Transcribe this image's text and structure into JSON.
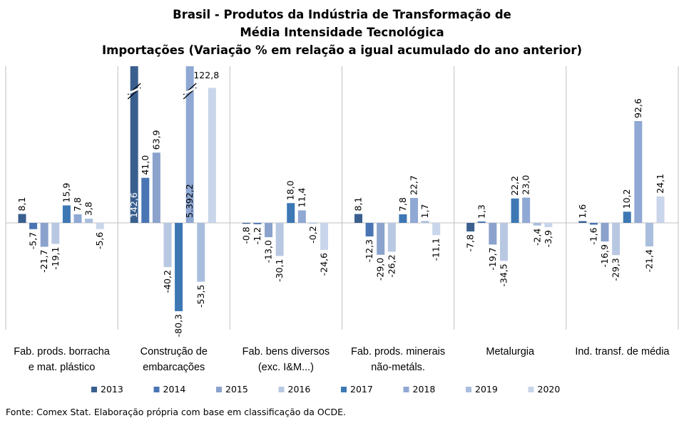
{
  "chart_data": {
    "type": "bar",
    "title_lines": [
      "Brasil - Produtos da Indústria de Transformação de",
      "Média Intensidade Tecnológica",
      "Importações (Variação % em relação a igual acumulado do ano anterior)"
    ],
    "categories": [
      [
        "Fab. prods. borracha",
        "e mat. plástico"
      ],
      [
        "Construção de",
        "embarcações"
      ],
      [
        "Fab. bens diversos",
        "(exc. I&M...)"
      ],
      [
        "Fab. prods. minerais",
        "não-metáls."
      ],
      [
        "Metalurgia"
      ],
      [
        "Ind. transf. de média"
      ]
    ],
    "series": [
      {
        "name": "2013",
        "color": "#3a5f8f",
        "values": [
          8.1,
          142.6,
          -0.8,
          8.1,
          -7.8,
          1.6
        ],
        "labels": [
          "8,1",
          "142,6",
          "-0,8",
          "8,1",
          "-7,8",
          "1,6"
        ]
      },
      {
        "name": "2014",
        "color": "#4a75b5",
        "values": [
          -5.7,
          41.0,
          -1.2,
          -12.3,
          1.3,
          -1.6
        ],
        "labels": [
          "-5,7",
          "41,0",
          "-1,2",
          "-12,3",
          "1,3",
          "-1,6"
        ]
      },
      {
        "name": "2015",
        "color": "#8ba2cc",
        "values": [
          -21.7,
          63.9,
          -13.0,
          -29.0,
          -19.7,
          -16.9
        ],
        "labels": [
          "-21,7",
          "63,9",
          "-13,0",
          "-29,0",
          "-19,7",
          "-16,9"
        ]
      },
      {
        "name": "2016",
        "color": "#b9c8e2",
        "values": [
          -19.1,
          -40.2,
          -30.1,
          -26.2,
          -34.5,
          -29.3
        ],
        "labels": [
          "-19,1",
          "-40,2",
          "-30,1",
          "-26,2",
          "-34,5",
          "-29,3"
        ]
      },
      {
        "name": "2017",
        "color": "#3d78b4",
        "values": [
          15.9,
          -80.3,
          18.0,
          7.8,
          22.2,
          10.2
        ],
        "labels": [
          "15,9",
          "-80,3",
          "18,0",
          "7,8",
          "22,2",
          "10,2"
        ]
      },
      {
        "name": "2018",
        "color": "#8fa8d4",
        "values": [
          7.8,
          5392.2,
          11.4,
          22.7,
          23.0,
          92.6
        ],
        "labels": [
          "7,8",
          "5.392,2",
          "11,4",
          "22,7",
          "23,0",
          "92,6"
        ]
      },
      {
        "name": "2019",
        "color": "#a9bedd",
        "values": [
          3.8,
          -53.5,
          -0.2,
          1.7,
          -2.4,
          -21.4
        ],
        "labels": [
          "3,8",
          "-53,5",
          "-0,2",
          "1,7",
          "-2,4",
          "-21,4"
        ]
      },
      {
        "name": "2020",
        "color": "#c9d5ea",
        "values": [
          -5.6,
          122.8,
          -24.6,
          -11.1,
          -3.9,
          24.1
        ],
        "labels": [
          "-5,6",
          "122,8",
          "-24,6",
          "-11,1",
          "-3,9",
          "24,1"
        ]
      }
    ],
    "ylim": [
      -100,
      142
    ],
    "axis_break": true,
    "legend_position": "bottom",
    "grid": false
  },
  "footer": {
    "source": "Fonte: Comex Stat. Elaboração própria com base em classificação da OCDE."
  }
}
